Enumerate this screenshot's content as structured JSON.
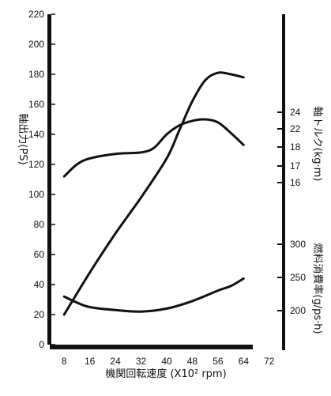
{
  "chart_data": {
    "type": "line",
    "xlabel": "機関回転速度 (X10² rpm)",
    "x_ticks": [
      8,
      16,
      24,
      32,
      40,
      48,
      56,
      64,
      72
    ],
    "xlim": [
      4,
      76
    ],
    "left_axis": {
      "label": "軸出力(PS)",
      "ylim": [
        0,
        220
      ],
      "ticks": [
        0,
        20,
        40,
        60,
        80,
        100,
        120,
        140,
        160,
        180,
        200,
        220
      ]
    },
    "torque_axis": {
      "label": "軸トルク(kg·m)",
      "ticks": [
        16,
        17,
        18,
        22,
        24
      ]
    },
    "fuel_axis": {
      "label": "燃料消費率(g/ps·h)",
      "ticks": [
        200,
        250,
        300
      ]
    },
    "series": [
      {
        "axis": "left",
        "x": [
          8,
          16,
          24,
          32,
          40,
          44,
          48,
          52,
          56,
          60,
          64
        ],
        "y": [
          20,
          48,
          74,
          98,
          124,
          143,
          162,
          176,
          181,
          180,
          178
        ]
      },
      {
        "axis": "left",
        "x": [
          8,
          12,
          16,
          24,
          32,
          36,
          40,
          44,
          48,
          52,
          56,
          60,
          64
        ],
        "y": [
          112,
          120,
          124,
          127,
          128,
          131,
          140,
          146,
          149,
          150,
          148,
          141,
          133
        ]
      },
      {
        "axis": "left",
        "x": [
          8,
          12,
          16,
          24,
          32,
          40,
          48,
          56,
          60,
          64
        ],
        "y": [
          32,
          28,
          25,
          23,
          22,
          24,
          29,
          36,
          39,
          44
        ]
      }
    ],
    "grid": false,
    "legend": "none"
  },
  "colors": {
    "line": "#111111",
    "axis": "#111111"
  }
}
